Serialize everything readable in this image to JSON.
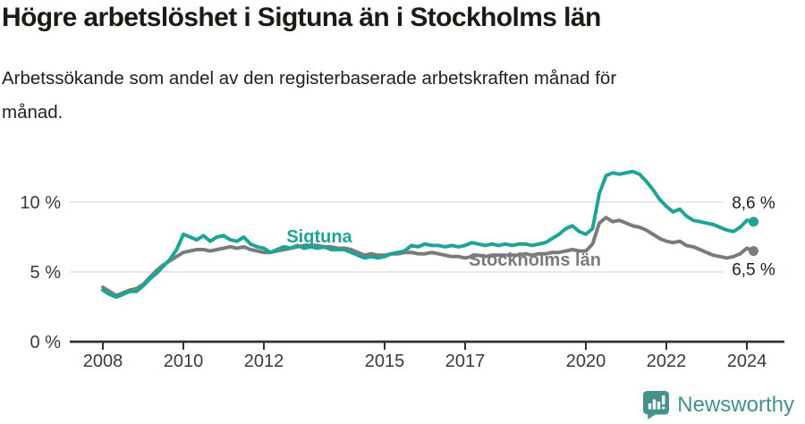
{
  "header": {
    "title": "Högre arbetslöshet i Sigtuna än i Stockholms län",
    "subtitle": "Arbetssökande som andel av den registerbaserade arbetskraften månad för månad."
  },
  "branding": {
    "logo_text": "Newsworthy",
    "logo_icon": "newsworthy-speech-bubble-bar-chart-icon",
    "brand_color": "#45928e"
  },
  "chart_data": {
    "type": "line",
    "unit": "%",
    "x_start_year": 2008,
    "x_step_months": 2,
    "x_tick_years": [
      2008,
      2010,
      2012,
      2015,
      2017,
      2020,
      2022,
      2024
    ],
    "y_axis": [
      {
        "value": 0,
        "label": "0 %"
      },
      {
        "value": 5,
        "label": "5 %"
      },
      {
        "value": 10,
        "label": "10 %"
      }
    ],
    "grid_values": [
      5,
      10
    ],
    "ylim": [
      0,
      13
    ],
    "xlim_years": [
      2007.2,
      2024.9
    ],
    "legend_position": "inline-labels",
    "style": {
      "grid_color": "#e2e2e2",
      "axis_color": "#303030",
      "tick_text_color": "#3a3a3a",
      "end_label_text_color": "#1d1d1d"
    },
    "series": [
      {
        "name": "Sigtuna",
        "color": "#1ea496",
        "end_label": "8,6 %",
        "last_value": 8.6,
        "values": [
          3.7,
          3.4,
          3.2,
          3.4,
          3.6,
          3.6,
          4.0,
          4.5,
          4.9,
          5.4,
          5.9,
          6.6,
          7.7,
          7.5,
          7.3,
          7.6,
          7.2,
          7.5,
          7.6,
          7.3,
          7.2,
          7.5,
          7.0,
          6.8,
          6.7,
          6.4,
          6.6,
          6.8,
          6.7,
          6.9,
          6.7,
          6.8,
          6.7,
          6.8,
          6.6,
          6.6,
          6.6,
          6.4,
          6.2,
          6.0,
          6.1,
          6.0,
          6.1,
          6.3,
          6.4,
          6.5,
          6.9,
          6.8,
          7.0,
          6.9,
          6.9,
          6.8,
          6.9,
          6.8,
          6.9,
          7.1,
          7.0,
          6.9,
          7.0,
          6.9,
          7.0,
          6.9,
          7.0,
          7.0,
          6.9,
          7.0,
          7.1,
          7.4,
          7.7,
          8.1,
          8.3,
          7.9,
          7.7,
          8.1,
          10.6,
          11.9,
          12.1,
          12.0,
          12.1,
          12.2,
          12.0,
          11.5,
          10.9,
          10.2,
          9.7,
          9.3,
          9.5,
          9.0,
          8.7,
          8.6,
          8.5,
          8.4,
          8.2,
          8.0,
          7.9,
          8.2,
          8.7,
          8.6
        ]
      },
      {
        "name": "Stockholms län",
        "color": "#7b7b7b",
        "end_label": "6,5 %",
        "last_value": 6.5,
        "values": [
          3.9,
          3.6,
          3.3,
          3.5,
          3.7,
          3.8,
          4.1,
          4.6,
          5.1,
          5.5,
          5.8,
          6.1,
          6.4,
          6.5,
          6.6,
          6.6,
          6.5,
          6.6,
          6.7,
          6.8,
          6.7,
          6.8,
          6.6,
          6.5,
          6.4,
          6.4,
          6.5,
          6.6,
          6.7,
          6.8,
          6.9,
          6.9,
          6.9,
          6.8,
          6.8,
          6.7,
          6.7,
          6.6,
          6.4,
          6.2,
          6.3,
          6.2,
          6.2,
          6.3,
          6.3,
          6.4,
          6.4,
          6.3,
          6.3,
          6.4,
          6.3,
          6.2,
          6.1,
          6.1,
          6.0,
          6.1,
          6.2,
          6.1,
          6.2,
          6.2,
          6.2,
          6.2,
          6.2,
          6.3,
          6.2,
          6.3,
          6.3,
          6.4,
          6.4,
          6.5,
          6.6,
          6.5,
          6.5,
          7.0,
          8.5,
          8.9,
          8.6,
          8.7,
          8.5,
          8.3,
          8.2,
          8.0,
          7.7,
          7.4,
          7.2,
          7.1,
          7.2,
          6.9,
          6.8,
          6.6,
          6.4,
          6.2,
          6.1,
          6.0,
          6.1,
          6.3,
          6.7,
          6.5
        ]
      }
    ]
  }
}
